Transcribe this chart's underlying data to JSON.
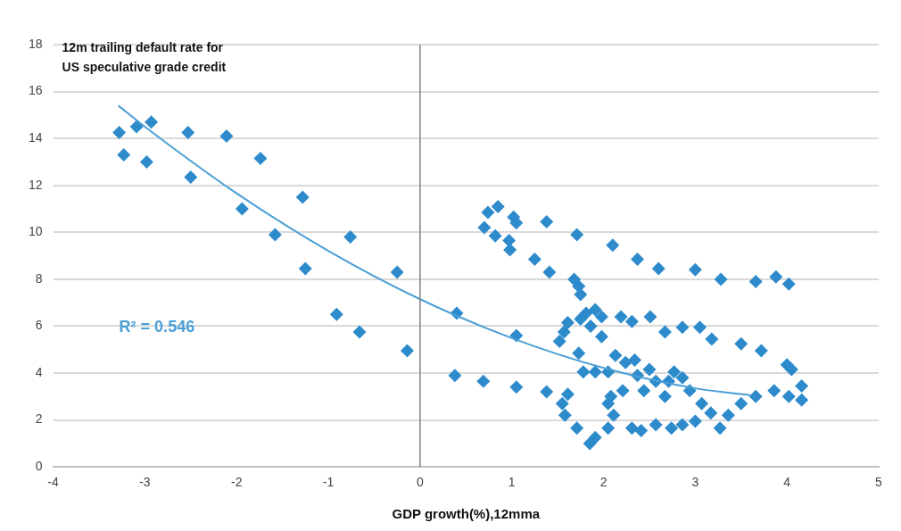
{
  "chart_data": {
    "type": "scatter",
    "ylabel": "12m trailing default rate for US speculative grade credit",
    "xlabel": "GDP growth(%),12mma",
    "xlim": [
      -4,
      5
    ],
    "xticks": [
      -4,
      -3,
      -2,
      -1,
      0,
      1,
      2,
      3,
      4,
      5
    ],
    "ylim": [
      0,
      18
    ],
    "yticks": [
      0,
      2,
      4,
      6,
      8,
      10,
      12,
      14,
      16,
      18
    ],
    "grid": "y",
    "legend": false,
    "marker": "diamond",
    "ref_lines": [
      {
        "axis": "x",
        "value": 0,
        "color": "#808080"
      }
    ],
    "annotations": [
      "R² = 0.546"
    ],
    "series": [
      {
        "type": "scatter",
        "color": "#2e8bcb",
        "x": [
          -3.28,
          -3.09,
          -2.93,
          -3.23,
          -2.98,
          -2.53,
          -2.5,
          -2.11,
          -1.74,
          -1.94,
          -1.28,
          -1.58,
          -1.25,
          -0.76,
          -0.91,
          -0.66,
          -0.25,
          -0.14,
          0.4,
          0.38,
          0.69,
          1.05,
          1.38,
          1.05,
          0.85,
          0.74,
          0.7,
          0.82,
          1.02,
          1.05,
          0.97,
          0.98,
          1.38,
          1.25,
          1.41,
          1.71,
          1.68,
          1.73,
          1.75,
          2.1,
          2.37,
          2.6,
          3.0,
          3.28,
          3.66,
          3.88,
          4.02,
          1.57,
          1.52,
          1.61,
          1.75,
          1.81,
          1.91,
          1.98,
          1.86,
          1.98,
          1.73,
          2.19,
          2.31,
          2.51,
          2.67,
          2.86,
          3.05,
          3.18,
          3.5,
          3.72,
          4.0,
          4.05,
          2.13,
          1.55,
          1.58,
          1.61,
          1.71,
          1.85,
          1.91,
          2.05,
          2.11,
          2.08,
          1.91,
          1.78,
          2.05,
          2.24,
          2.34,
          2.37,
          2.5,
          2.57,
          2.44,
          2.21,
          2.31,
          2.41,
          2.57,
          2.74,
          2.86,
          3.0,
          2.77,
          2.86,
          2.94,
          3.07,
          3.17,
          3.27,
          3.36,
          3.5,
          3.66,
          3.86,
          4.02,
          4.16,
          4.16,
          2.67,
          2.71,
          2.05
        ],
        "values": [
          14.25,
          14.5,
          14.7,
          13.3,
          13.0,
          14.25,
          12.35,
          14.1,
          13.15,
          11.0,
          11.5,
          9.9,
          8.45,
          9.8,
          6.5,
          5.75,
          8.3,
          4.95,
          6.55,
          3.9,
          3.65,
          3.4,
          3.2,
          5.6,
          11.1,
          10.85,
          10.2,
          9.85,
          10.65,
          10.4,
          9.65,
          9.25,
          10.45,
          8.85,
          8.3,
          9.9,
          8.0,
          7.7,
          7.35,
          9.45,
          8.85,
          8.45,
          8.4,
          8.0,
          7.9,
          8.1,
          7.8,
          5.75,
          5.35,
          6.15,
          6.3,
          6.55,
          6.7,
          6.4,
          6.0,
          5.55,
          4.85,
          6.4,
          6.2,
          6.4,
          5.75,
          5.95,
          5.95,
          5.45,
          5.25,
          4.95,
          4.35,
          4.15,
          4.75,
          2.7,
          2.2,
          3.1,
          1.65,
          1.0,
          1.25,
          1.65,
          2.2,
          3.0,
          4.05,
          4.05,
          4.05,
          4.45,
          4.55,
          3.9,
          4.15,
          3.65,
          3.25,
          3.25,
          1.65,
          1.55,
          1.8,
          1.65,
          1.8,
          1.95,
          4.05,
          3.8,
          3.25,
          2.7,
          2.3,
          1.65,
          2.2,
          2.7,
          3.0,
          3.25,
          3.0,
          2.85,
          3.45,
          3.0,
          3.65,
          2.7
        ]
      },
      {
        "type": "line",
        "color": "#4a9fd6",
        "marker": "none",
        "x": [
          -3.29,
          -3,
          -2,
          -1,
          0,
          1,
          2,
          3,
          3.6
        ],
        "values": [
          15.4,
          14.5,
          11.66,
          9.21,
          7.15,
          5.49,
          4.22,
          3.35,
          3.06
        ]
      }
    ]
  }
}
